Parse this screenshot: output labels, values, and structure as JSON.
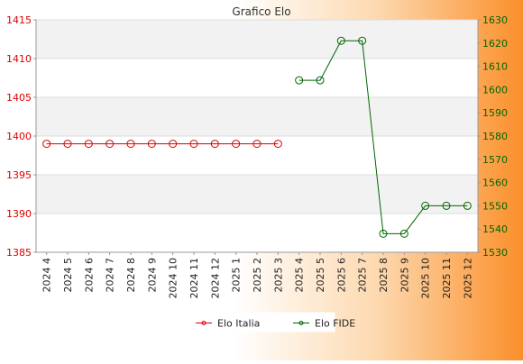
{
  "chart_data": {
    "type": "line",
    "title": "Grafico Elo",
    "categories": [
      "2024 4",
      "2024 5",
      "2024 6",
      "2024 7",
      "2024 8",
      "2024 9",
      "2024 10",
      "2024 11",
      "2024 12",
      "2025 1",
      "2025 2",
      "2025 3",
      "2025 4",
      "2025 5",
      "2025 6",
      "2025 7",
      "2025 8",
      "2025 9",
      "2025 10",
      "2025 11",
      "2025 12"
    ],
    "y_left": {
      "min": 1385,
      "max": 1415,
      "ticks": [
        1385,
        1390,
        1395,
        1400,
        1405,
        1410,
        1415
      ],
      "color": "#dd0000"
    },
    "y_right": {
      "min": 1530,
      "max": 1630,
      "ticks": [
        1530,
        1540,
        1550,
        1560,
        1570,
        1580,
        1590,
        1600,
        1610,
        1620,
        1630
      ],
      "color": "#006600"
    },
    "series": [
      {
        "name": "Elo Italia",
        "axis": "left",
        "color": "#dd0000",
        "values": [
          1399,
          1399,
          1399,
          1399,
          1399,
          1399,
          1399,
          1399,
          1399,
          1399,
          1399,
          1399,
          null,
          null,
          null,
          null,
          null,
          null,
          null,
          null,
          null
        ]
      },
      {
        "name": "Elo FIDE",
        "axis": "right",
        "color": "#006600",
        "values": [
          null,
          null,
          null,
          null,
          null,
          null,
          null,
          null,
          null,
          null,
          null,
          null,
          1604,
          1604,
          1621,
          1621,
          1538,
          1538,
          1550,
          1550,
          1550
        ]
      }
    ],
    "grid": true,
    "legend": "bottom"
  }
}
